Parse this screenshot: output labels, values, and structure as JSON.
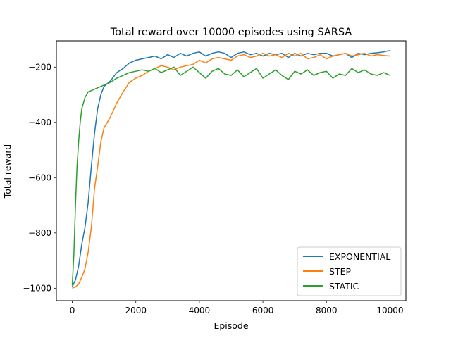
{
  "chart_data": {
    "type": "line",
    "title": "Total reward over 10000 episodes using SARSA",
    "xlabel": "Episode",
    "ylabel": "Total reward",
    "xlim": [
      -500,
      10500
    ],
    "ylim": [
      -1045,
      -105
    ],
    "xticks": [
      0,
      2000,
      4000,
      6000,
      8000,
      10000
    ],
    "yticks": [
      -1000,
      -800,
      -600,
      -400,
      -200
    ],
    "ytick_labels": [
      "−1000",
      "−800",
      "−600",
      "−400",
      "−200"
    ],
    "grid": false,
    "legend_position": "lower right",
    "series": [
      {
        "name": "EXPONENTIAL",
        "color": "#1f77b4",
        "x": [
          0,
          100,
          200,
          300,
          400,
          500,
          600,
          700,
          800,
          900,
          1000,
          1200,
          1400,
          1600,
          1800,
          2000,
          2200,
          2400,
          2600,
          2800,
          3000,
          3200,
          3400,
          3600,
          3800,
          4000,
          4200,
          4400,
          4600,
          4800,
          5000,
          5200,
          5400,
          5600,
          5800,
          6000,
          6200,
          6400,
          6600,
          6800,
          7000,
          7200,
          7400,
          7600,
          7800,
          8000,
          8200,
          8400,
          8600,
          8800,
          9000,
          9200,
          9400,
          9600,
          9800,
          10000
        ],
        "y": [
          -995,
          -970,
          -920,
          -840,
          -780,
          -690,
          -560,
          -440,
          -350,
          -300,
          -270,
          -250,
          -220,
          -205,
          -185,
          -175,
          -170,
          -165,
          -160,
          -170,
          -155,
          -165,
          -150,
          -160,
          -150,
          -145,
          -160,
          -150,
          -145,
          -150,
          -165,
          -150,
          -145,
          -155,
          -150,
          -160,
          -150,
          -155,
          -150,
          -165,
          -150,
          -160,
          -150,
          -155,
          -150,
          -150,
          -160,
          -155,
          -150,
          -165,
          -150,
          -155,
          -150,
          -148,
          -145,
          -140
        ]
      },
      {
        "name": "STEP",
        "color": "#ff7f0e",
        "x": [
          0,
          100,
          200,
          300,
          400,
          500,
          600,
          700,
          800,
          900,
          1000,
          1200,
          1400,
          1600,
          1800,
          2000,
          2200,
          2400,
          2600,
          2800,
          3000,
          3200,
          3400,
          3600,
          3800,
          4000,
          4200,
          4400,
          4600,
          4800,
          5000,
          5200,
          5400,
          5600,
          5800,
          6000,
          6200,
          6400,
          6600,
          6800,
          7000,
          7200,
          7400,
          7600,
          7800,
          8000,
          8200,
          8400,
          8600,
          8800,
          9000,
          9200,
          9400,
          9600,
          9800,
          10000
        ],
        "y": [
          -1000,
          -995,
          -985,
          -960,
          -930,
          -870,
          -780,
          -640,
          -560,
          -470,
          -420,
          -380,
          -330,
          -290,
          -255,
          -240,
          -230,
          -215,
          -205,
          -195,
          -200,
          -210,
          -200,
          -195,
          -190,
          -175,
          -185,
          -170,
          -165,
          -170,
          -175,
          -160,
          -155,
          -165,
          -160,
          -150,
          -160,
          -155,
          -165,
          -150,
          -160,
          -150,
          -170,
          -165,
          -155,
          -170,
          -160,
          -155,
          -150,
          -160,
          -155,
          -150,
          -160,
          -155,
          -158,
          -160
        ]
      },
      {
        "name": "STATIC",
        "color": "#2ca02c",
        "x": [
          0,
          50,
          100,
          150,
          200,
          250,
          300,
          400,
          500,
          600,
          700,
          800,
          900,
          1000,
          1200,
          1400,
          1600,
          1800,
          2000,
          2200,
          2400,
          2600,
          2800,
          3000,
          3200,
          3400,
          3600,
          3800,
          4000,
          4200,
          4400,
          4600,
          4800,
          5000,
          5200,
          5400,
          5600,
          5800,
          6000,
          6200,
          6400,
          6600,
          6800,
          7000,
          7200,
          7400,
          7600,
          7800,
          8000,
          8200,
          8400,
          8600,
          8800,
          9000,
          9200,
          9400,
          9600,
          9800,
          10000
        ],
        "y": [
          -990,
          -880,
          -700,
          -560,
          -470,
          -400,
          -350,
          -310,
          -290,
          -285,
          -280,
          -275,
          -270,
          -265,
          -255,
          -240,
          -230,
          -220,
          -215,
          -210,
          -215,
          -205,
          -220,
          -210,
          -200,
          -230,
          -215,
          -200,
          -220,
          -240,
          -215,
          -205,
          -225,
          -230,
          -210,
          -235,
          -220,
          -205,
          -240,
          -225,
          -210,
          -230,
          -245,
          -215,
          -225,
          -210,
          -230,
          -220,
          -215,
          -240,
          -225,
          -230,
          -205,
          -220,
          -210,
          -225,
          -230,
          -220,
          -230
        ]
      }
    ]
  }
}
